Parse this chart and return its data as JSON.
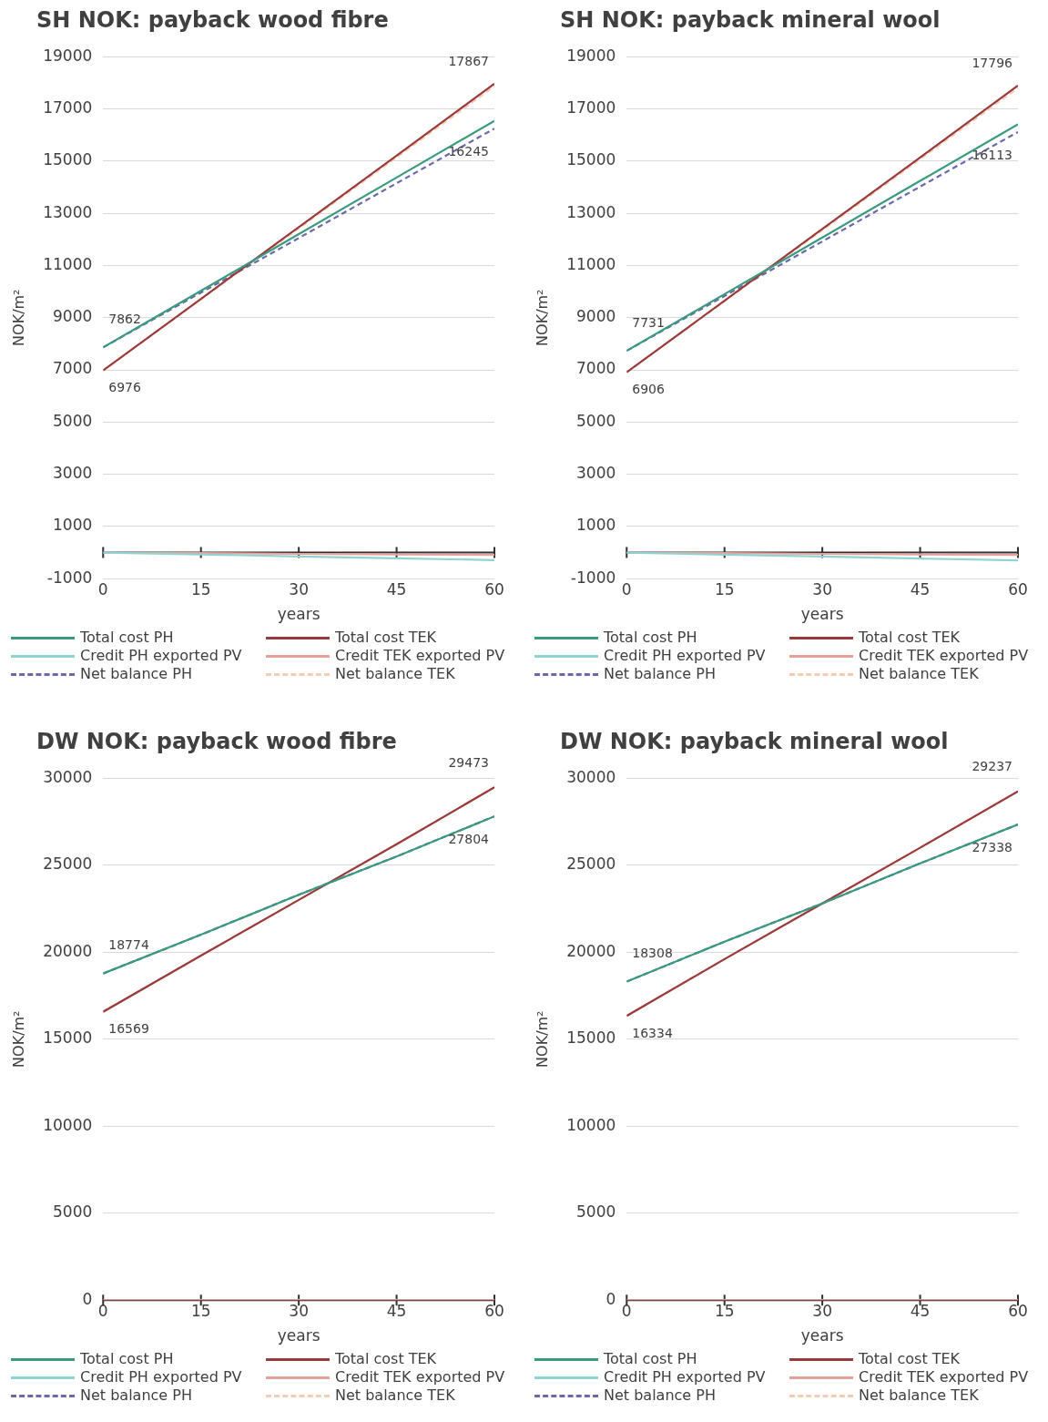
{
  "chart_data": [
    {
      "type": "line",
      "title": "SH NOK: payback wood fibre",
      "xlabel": "years",
      "ylabel": "NOK/m²",
      "x": [
        0,
        15,
        30,
        45,
        60
      ],
      "xlim": [
        0,
        60
      ],
      "xticks": [
        0,
        15,
        30,
        45,
        60
      ],
      "ylim": [
        -1000,
        19000
      ],
      "yticks": [
        -1000,
        1000,
        3000,
        5000,
        7000,
        9000,
        11000,
        13000,
        15000,
        17000,
        19000
      ],
      "grid": "y",
      "legend": "bottom",
      "series": [
        {
          "name": "Total cost PH",
          "color": "#3a9a80",
          "values": [
            7862,
            10030,
            12200,
            14370,
            16540
          ],
          "value_labels": [
            "7862",
            null,
            null,
            null,
            null
          ]
        },
        {
          "name": "Total cost TEK",
          "color": "#9b3a3a",
          "values": [
            6976,
            9720,
            12470,
            15210,
            17960
          ],
          "value_labels": [
            "6976",
            null,
            null,
            null,
            null
          ]
        },
        {
          "name": "Credit PH exported PV",
          "color": "#8fd3d3",
          "values": [
            0,
            -70,
            -150,
            -220,
            -290
          ]
        },
        {
          "name": "Credit TEK exported PV",
          "color": "#e8a09a",
          "values": [
            0,
            -20,
            -50,
            -70,
            -90
          ]
        },
        {
          "name": "Net balance PH",
          "color": "#6a6aaa",
          "line_style": "dashed",
          "values": [
            7862,
            9960,
            12050,
            14150,
            16245
          ],
          "value_labels": [
            null,
            null,
            null,
            null,
            "16245"
          ]
        },
        {
          "name": "Net balance TEK",
          "color": "#f5cdb5",
          "line_style": "dashed",
          "values": [
            6976,
            9700,
            12420,
            15140,
            17867
          ],
          "value_labels": [
            null,
            null,
            null,
            null,
            "17867"
          ]
        }
      ]
    },
    {
      "type": "line",
      "title": "SH NOK: payback mineral wool",
      "xlabel": "years",
      "ylabel": "NOK/m²",
      "x": [
        0,
        15,
        30,
        45,
        60
      ],
      "xlim": [
        0,
        60
      ],
      "xticks": [
        0,
        15,
        30,
        45,
        60
      ],
      "ylim": [
        -1000,
        19000
      ],
      "yticks": [
        -1000,
        1000,
        3000,
        5000,
        7000,
        9000,
        11000,
        13000,
        15000,
        17000,
        19000
      ],
      "grid": "y",
      "legend": "bottom",
      "series": [
        {
          "name": "Total cost PH",
          "color": "#3a9a80",
          "values": [
            7731,
            9900,
            12070,
            14240,
            16410
          ],
          "value_labels": [
            "7731",
            null,
            null,
            null,
            null
          ]
        },
        {
          "name": "Total cost TEK",
          "color": "#9b3a3a",
          "values": [
            6906,
            9650,
            12400,
            15140,
            17890
          ],
          "value_labels": [
            "6906",
            null,
            null,
            null,
            null
          ]
        },
        {
          "name": "Credit PH exported PV",
          "color": "#8fd3d3",
          "values": [
            0,
            -80,
            -150,
            -230,
            -300
          ]
        },
        {
          "name": "Credit TEK exported PV",
          "color": "#e8a09a",
          "values": [
            0,
            -20,
            -50,
            -70,
            -90
          ]
        },
        {
          "name": "Net balance PH",
          "color": "#6a6aaa",
          "line_style": "dashed",
          "values": [
            7731,
            9830,
            11920,
            14020,
            16113
          ],
          "value_labels": [
            null,
            null,
            null,
            null,
            "16113"
          ]
        },
        {
          "name": "Net balance TEK",
          "color": "#f5cdb5",
          "line_style": "dashed",
          "values": [
            6906,
            9630,
            12350,
            15070,
            17796
          ],
          "value_labels": [
            null,
            null,
            null,
            null,
            "17796"
          ]
        }
      ]
    },
    {
      "type": "line",
      "title": "DW NOK: payback wood fibre",
      "xlabel": "years",
      "ylabel": "NOK/m²",
      "x": [
        0,
        15,
        30,
        45,
        60
      ],
      "xlim": [
        0,
        60
      ],
      "xticks": [
        0,
        15,
        30,
        45,
        60
      ],
      "ylim": [
        0,
        30000
      ],
      "yticks": [
        0,
        5000,
        10000,
        15000,
        20000,
        25000,
        30000
      ],
      "grid": "y",
      "legend": "bottom",
      "series": [
        {
          "name": "Total cost PH",
          "color": "#3a9a80",
          "values": [
            18774,
            21000,
            23300,
            25500,
            27804
          ],
          "value_labels": [
            "18774",
            null,
            null,
            null,
            "27804"
          ]
        },
        {
          "name": "Total cost TEK",
          "color": "#9b3a3a",
          "values": [
            16569,
            19800,
            23000,
            26200,
            29473
          ],
          "value_labels": [
            "16569",
            null,
            null,
            null,
            "29473"
          ]
        },
        {
          "name": "Credit PH exported PV",
          "color": "#8fd3d3",
          "values": [
            null,
            null,
            null,
            null,
            null
          ]
        },
        {
          "name": "Credit TEK exported PV",
          "color": "#e8a09a",
          "values": [
            0,
            0,
            0,
            0,
            0
          ]
        },
        {
          "name": "Net balance PH",
          "color": "#6a6aaa",
          "line_style": "dashed",
          "values": [
            18774,
            21000,
            23300,
            25500,
            27804
          ]
        },
        {
          "name": "Net balance TEK",
          "color": "#f5cdb5",
          "line_style": "dashed",
          "values": [
            16569,
            19800,
            23000,
            26200,
            29473
          ]
        }
      ]
    },
    {
      "type": "line",
      "title": "DW NOK: payback mineral wool",
      "xlabel": "years",
      "ylabel": "NOK/m²",
      "x": [
        0,
        15,
        30,
        45,
        60
      ],
      "xlim": [
        0,
        60
      ],
      "xticks": [
        0,
        15,
        30,
        45,
        60
      ],
      "ylim": [
        0,
        30000
      ],
      "yticks": [
        0,
        5000,
        10000,
        15000,
        20000,
        25000,
        30000
      ],
      "grid": "y",
      "legend": "bottom",
      "series": [
        {
          "name": "Total cost PH",
          "color": "#3a9a80",
          "values": [
            18308,
            20600,
            22800,
            25100,
            27338
          ],
          "value_labels": [
            "18308",
            null,
            null,
            null,
            "27338"
          ]
        },
        {
          "name": "Total cost TEK",
          "color": "#9b3a3a",
          "values": [
            16334,
            19600,
            22800,
            26000,
            29237
          ],
          "value_labels": [
            "16334",
            null,
            null,
            null,
            "29237"
          ]
        },
        {
          "name": "Credit PH exported PV",
          "color": "#8fd3d3",
          "values": [
            null,
            null,
            null,
            null,
            null
          ]
        },
        {
          "name": "Credit TEK exported PV",
          "color": "#e8a09a",
          "values": [
            0,
            0,
            0,
            0,
            0
          ]
        },
        {
          "name": "Net balance PH",
          "color": "#6a6aaa",
          "line_style": "dashed",
          "values": [
            18308,
            20600,
            22800,
            25100,
            27338
          ]
        },
        {
          "name": "Net balance TEK",
          "color": "#f5cdb5",
          "line_style": "dashed",
          "values": [
            16334,
            19600,
            22800,
            26000,
            29237
          ]
        }
      ]
    }
  ]
}
